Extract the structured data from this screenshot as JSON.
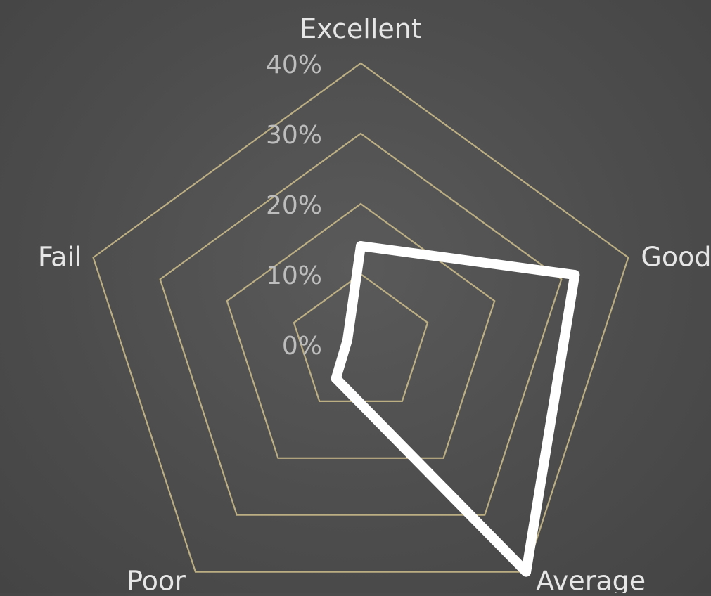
{
  "chart_data": {
    "type": "radar",
    "title": "",
    "categories": [
      "Excellent",
      "Good",
      "Average",
      "Poor",
      "Fail"
    ],
    "series": [
      {
        "values": [
          14,
          32,
          40,
          6,
          2
        ]
      }
    ],
    "axis": {
      "min": 0,
      "max": 40,
      "step": 10,
      "tick_labels": [
        "0%",
        "10%",
        "20%",
        "30%",
        "40%"
      ]
    },
    "legend": "none",
    "colors": {
      "grid": "#c9b98a",
      "series": "#ffffff",
      "text": "#e6e6e6",
      "tick_text": "#bdbdbd"
    }
  }
}
